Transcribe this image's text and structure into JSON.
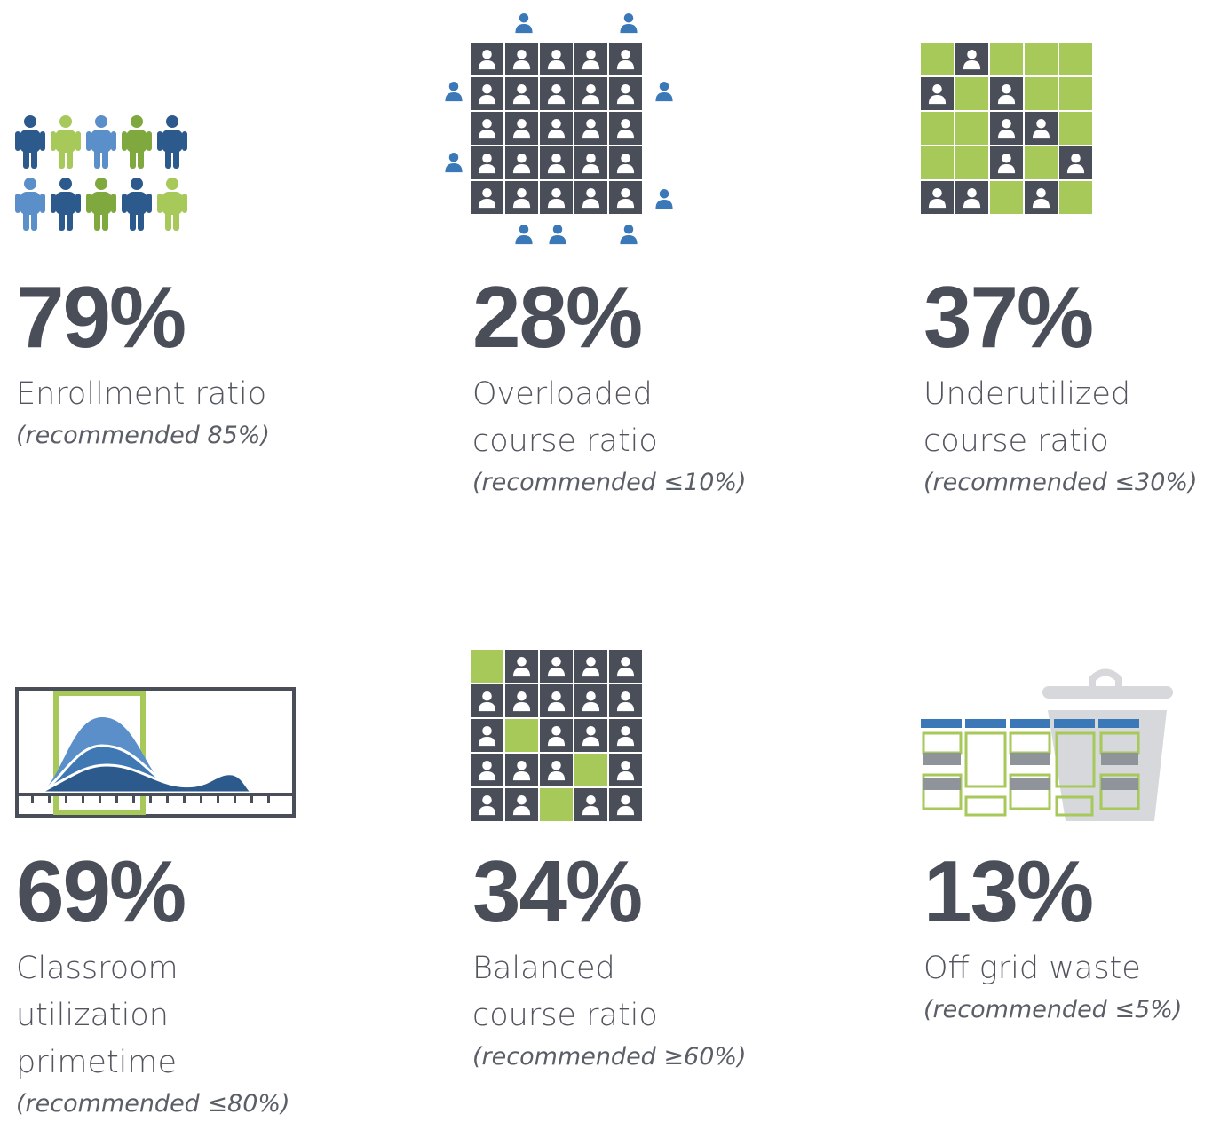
{
  "stats": [
    {
      "value": "79%",
      "lines": [
        "Enrollment ratio"
      ],
      "note": "(recommended 85%)"
    },
    {
      "value": "28%",
      "lines": [
        "Overloaded",
        "course ratio"
      ],
      "note": "(recommended ≤10%)"
    },
    {
      "value": "37%",
      "lines": [
        "Underutilized",
        "course ratio"
      ],
      "note": "(recommended ≤30%)"
    },
    {
      "value": "69%",
      "lines": [
        "Classroom utilization",
        "primetime"
      ],
      "note": "(recommended ≤80%)"
    },
    {
      "value": "34%",
      "lines": [
        "Balanced",
        "course ratio"
      ],
      "note": "(recommended ≥60%)"
    },
    {
      "value": "13%",
      "lines": [
        "Off grid waste"
      ],
      "note": "(recommended ≤5%)"
    }
  ]
}
